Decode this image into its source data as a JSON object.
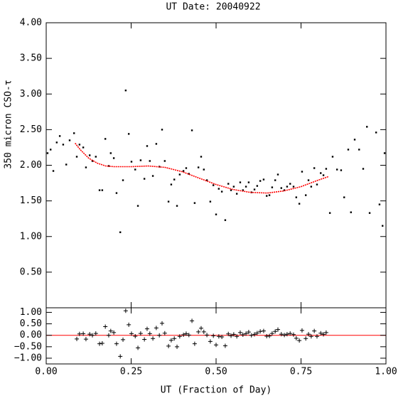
{
  "chart_data": [
    {
      "type": "scatter",
      "title": "UT Date: 20040922",
      "y_label": "350 micron CSO-τ",
      "xlim": [
        0,
        1
      ],
      "ylim": [
        0,
        4
      ],
      "xticks": [
        0,
        0.25,
        0.5,
        0.75,
        1
      ],
      "yticks": [
        {
          "value": 0.5,
          "label": "0.50"
        },
        {
          "value": 1,
          "label": "1.00"
        },
        {
          "value": 1.5,
          "label": "1.50"
        },
        {
          "value": 2,
          "label": "2.00"
        },
        {
          "value": 2.5,
          "label": "2.50"
        },
        {
          "value": 3,
          "label": "3.00"
        },
        {
          "value": 3.5,
          "label": "3.50"
        },
        {
          "value": 4,
          "label": "4.00"
        }
      ],
      "series": [
        {
          "marker": "dot",
          "color": "#000000",
          "x": [
            0.004,
            0.013,
            0.021,
            0.031,
            0.04,
            0.05,
            0.059,
            0.069,
            0.082,
            0.09,
            0.098,
            0.109,
            0.117,
            0.128,
            0.136,
            0.146,
            0.157,
            0.165,
            0.174,
            0.184,
            0.19,
            0.199,
            0.207,
            0.218,
            0.226,
            0.234,
            0.243,
            0.251,
            0.262,
            0.27,
            0.278,
            0.289,
            0.297,
            0.305,
            0.314,
            0.324,
            0.333,
            0.341,
            0.349,
            0.36,
            0.368,
            0.377,
            0.385,
            0.393,
            0.404,
            0.412,
            0.42,
            0.429,
            0.437,
            0.448,
            0.456,
            0.464,
            0.473,
            0.483,
            0.492,
            0.5,
            0.508,
            0.517,
            0.527,
            0.536,
            0.544,
            0.552,
            0.561,
            0.571,
            0.579,
            0.588,
            0.596,
            0.604,
            0.613,
            0.621,
            0.63,
            0.64,
            0.649,
            0.657,
            0.665,
            0.674,
            0.682,
            0.692,
            0.701,
            0.709,
            0.718,
            0.728,
            0.736,
            0.745,
            0.753,
            0.764,
            0.772,
            0.78,
            0.789,
            0.797,
            0.808,
            0.816,
            0.824,
            0.835,
            0.843,
            0.856,
            0.868,
            0.877,
            0.889,
            0.897,
            0.908,
            0.921,
            0.933,
            0.944,
            0.952,
            0.971,
            0.981,
            0.99,
            0.996
          ],
          "values": [
            2.17,
            2.22,
            1.92,
            2.32,
            2.41,
            2.29,
            2.01,
            2.35,
            2.45,
            2.12,
            2.29,
            2.25,
            1.97,
            2.14,
            2.06,
            2.12,
            1.65,
            1.65,
            2.37,
            1.99,
            2.17,
            2.1,
            1.61,
            1.06,
            1.79,
            3.05,
            2.44,
            2.05,
            1.94,
            1.43,
            2.07,
            1.81,
            2.27,
            2.06,
            1.85,
            2.3,
            1.98,
            2.5,
            2.06,
            1.49,
            1.73,
            1.8,
            1.43,
            1.87,
            1.92,
            1.96,
            1.88,
            2.49,
            1.47,
            1.97,
            2.12,
            1.94,
            1.79,
            1.49,
            1.72,
            1.31,
            1.67,
            1.63,
            1.23,
            1.74,
            1.65,
            1.7,
            1.6,
            1.76,
            1.65,
            1.7,
            1.76,
            1.62,
            1.66,
            1.71,
            1.78,
            1.8,
            1.57,
            1.58,
            1.69,
            1.79,
            1.87,
            1.68,
            1.65,
            1.7,
            1.74,
            1.7,
            1.55,
            1.46,
            1.91,
            1.58,
            1.79,
            1.7,
            1.96,
            1.73,
            1.89,
            1.86,
            1.95,
            1.33,
            2.12,
            1.94,
            1.93,
            1.55,
            2.22,
            1.34,
            2.36,
            2.22,
            1.95,
            2.54,
            1.33,
            2.46,
            1.45,
            1.15,
            2.17
          ]
        },
        {
          "marker": "line",
          "color": "#ff0000",
          "x": [
            0.085,
            0.1,
            0.125,
            0.15,
            0.175,
            0.2,
            0.25,
            0.3,
            0.35,
            0.4,
            0.45,
            0.5,
            0.55,
            0.6,
            0.65,
            0.7,
            0.75,
            0.8,
            0.83
          ],
          "values": [
            2.31,
            2.22,
            2.1,
            2.03,
            1.99,
            1.98,
            1.98,
            1.99,
            1.97,
            1.91,
            1.82,
            1.73,
            1.66,
            1.62,
            1.61,
            1.64,
            1.7,
            1.79,
            1.84
          ]
        }
      ]
    },
    {
      "type": "scatter",
      "x_label": "UT (Fraction of Day)",
      "xlim": [
        0,
        1
      ],
      "ylim": [
        -1.25,
        1.2
      ],
      "xticks": [
        {
          "value": 0,
          "label": "0.00"
        },
        {
          "value": 0.25,
          "label": "0.25"
        },
        {
          "value": 0.5,
          "label": "0.50"
        },
        {
          "value": 0.75,
          "label": "0.75"
        },
        {
          "value": 1,
          "label": "1.00"
        }
      ],
      "yticks": [
        {
          "value": -1,
          "label": "−1.00"
        },
        {
          "value": -0.5,
          "label": "−0.50"
        },
        {
          "value": 0,
          "label": "0.00"
        },
        {
          "value": 0.5,
          "label": "0.50"
        },
        {
          "value": 1,
          "label": "1.00"
        }
      ],
      "reference_line": {
        "value": 0,
        "color": "#ff0000"
      },
      "series": [
        {
          "marker": "plus",
          "color": "#000000",
          "x": [
            0.09,
            0.098,
            0.109,
            0.117,
            0.128,
            0.136,
            0.146,
            0.157,
            0.165,
            0.174,
            0.184,
            0.19,
            0.199,
            0.207,
            0.218,
            0.226,
            0.234,
            0.243,
            0.251,
            0.262,
            0.27,
            0.278,
            0.289,
            0.297,
            0.305,
            0.314,
            0.324,
            0.333,
            0.341,
            0.349,
            0.36,
            0.368,
            0.377,
            0.385,
            0.393,
            0.404,
            0.412,
            0.42,
            0.429,
            0.437,
            0.448,
            0.456,
            0.464,
            0.473,
            0.483,
            0.492,
            0.5,
            0.508,
            0.517,
            0.527,
            0.536,
            0.544,
            0.552,
            0.561,
            0.571,
            0.579,
            0.588,
            0.596,
            0.604,
            0.613,
            0.621,
            0.63,
            0.64,
            0.649,
            0.657,
            0.665,
            0.674,
            0.682,
            0.692,
            0.701,
            0.709,
            0.718,
            0.728,
            0.736,
            0.745,
            0.753,
            0.764,
            0.772,
            0.78,
            0.789,
            0.797,
            0.808,
            0.816,
            0.824
          ],
          "values": [
            -0.16,
            0.06,
            0.07,
            -0.17,
            0.05,
            0,
            0.08,
            -0.37,
            -0.35,
            0.38,
            0,
            0.19,
            0.12,
            -0.37,
            -0.92,
            -0.19,
            1.07,
            0.46,
            0.07,
            -0.04,
            -0.55,
            0.08,
            -0.18,
            0.28,
            0.07,
            -0.14,
            0.32,
            0,
            0.52,
            0.09,
            -0.47,
            -0.22,
            -0.14,
            -0.5,
            -0.05,
            0.02,
            0.07,
            0.01,
            0.63,
            -0.37,
            0.15,
            0.31,
            0.15,
            0.01,
            -0.27,
            -0.02,
            -0.42,
            -0.05,
            -0.07,
            -0.46,
            0.06,
            -0.02,
            0.04,
            -0.05,
            0.12,
            0.02,
            0.07,
            0.14,
            0,
            0.04,
            0.1,
            0.17,
            0.19,
            -0.04,
            -0.03,
            0.08,
            0.17,
            0.25,
            0.05,
            0.01,
            0.05,
            0.08,
            0.03,
            -0.13,
            -0.23,
            0.21,
            -0.14,
            0.05,
            -0.05,
            0.19,
            -0.05,
            0.09,
            0.04,
            0.12
          ]
        }
      ]
    }
  ]
}
